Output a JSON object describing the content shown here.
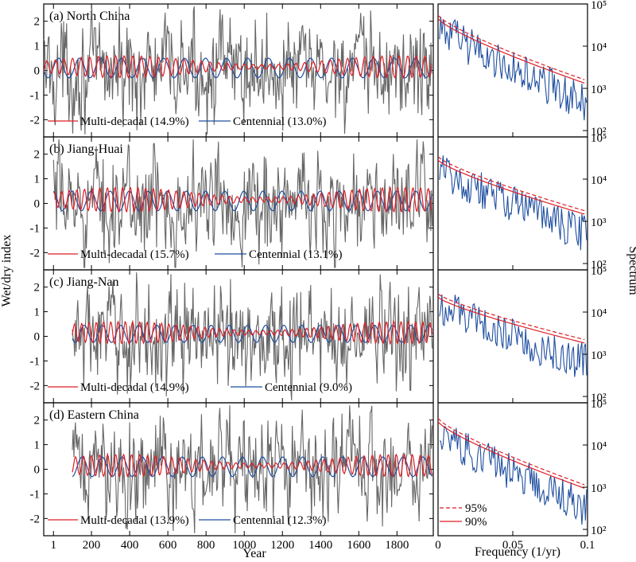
{
  "chart_data": [
    {
      "type": "line",
      "panel": "(a) North China",
      "xlabel": "Year",
      "ylabel": "Wet/dry index",
      "xlim": [
        -50,
        1990
      ],
      "ylim": [
        -2.7,
        2.7
      ],
      "x_ticks": [
        "1",
        "200",
        "400",
        "600",
        "800",
        "1000",
        "1200",
        "1400",
        "1600",
        "1800"
      ],
      "y_ticks": [
        "2",
        "1",
        "0",
        "-1",
        "-2"
      ],
      "start_year": -50,
      "series": [
        {
          "name": "Multi-decadal (14.9%)",
          "color": "#dd1f26",
          "amplitude": 0.45,
          "period_years": 45
        },
        {
          "name": "Centennial (13.0%)",
          "color": "#1f4fa0",
          "amplitude": 0.4,
          "period_years": 110
        },
        {
          "name": "",
          "color": "#666666",
          "amplitude": 1.0,
          "period_years": 0
        }
      ],
      "spectrum": {
        "xlabel": "Frequency (1/yr)",
        "ylabel": "Spectrum",
        "xlim": [
          0,
          0.1
        ],
        "ylim_log10": [
          1.85,
          5.0
        ],
        "x_ticks": [
          "0",
          "0.05",
          "0.1"
        ],
        "y_ticks": [
          "10^5",
          "10^4",
          "10^3",
          "10^2"
        ],
        "red_noise_log10_start": 4.65,
        "red_noise_log10_end": 3.1,
        "significance": [
          {
            "name": "95%",
            "color": "#dd1f26",
            "style": "dashed",
            "offset_log10": 0.08
          },
          {
            "name": "90%",
            "color": "#dd1f26",
            "style": "solid",
            "offset_log10": 0.0
          }
        ],
        "spectrum_color": "#1f4fa0"
      }
    },
    {
      "type": "line",
      "panel": "(b) Jiang-Huai",
      "xlim": [
        -50,
        1990
      ],
      "ylim": [
        -2.7,
        2.7
      ],
      "start_year": 1,
      "series": [
        {
          "name": "Multi-decadal (15.7%)",
          "color": "#dd1f26",
          "amplitude": 0.5,
          "period_years": 40
        },
        {
          "name": "Centennial (13.1%)",
          "color": "#1f4fa0",
          "amplitude": 0.4,
          "period_years": 100
        },
        {
          "name": "",
          "color": "#666666",
          "amplitude": 1.0,
          "period_years": 0
        }
      ],
      "spectrum": {
        "xlim": [
          0,
          0.1
        ],
        "ylim_log10": [
          1.85,
          5.0
        ],
        "red_noise_log10_start": 4.45,
        "red_noise_log10_end": 3.15
      }
    },
    {
      "type": "line",
      "panel": "(c) Jiang-Nan",
      "xlim": [
        -50,
        1990
      ],
      "ylim": [
        -2.7,
        2.7
      ],
      "start_year": 100,
      "series": [
        {
          "name": "Multi-decadal (14.9%)",
          "color": "#dd1f26",
          "amplitude": 0.45,
          "period_years": 38
        },
        {
          "name": "Centennial (9.0%)",
          "color": "#1f4fa0",
          "amplitude": 0.35,
          "period_years": 95
        },
        {
          "name": "",
          "color": "#666666",
          "amplitude": 1.0,
          "period_years": 0
        }
      ],
      "spectrum": {
        "xlim": [
          0,
          0.1
        ],
        "ylim_log10": [
          1.85,
          5.0
        ],
        "red_noise_log10_start": 4.35,
        "red_noise_log10_end": 3.25
      }
    },
    {
      "type": "line",
      "panel": "(d) Eastern China",
      "xlim": [
        -50,
        1990
      ],
      "ylim": [
        -2.7,
        2.7
      ],
      "start_year": 100,
      "series": [
        {
          "name": "Multi-decadal  (13.9%)",
          "color": "#dd1f26",
          "amplitude": 0.45,
          "period_years": 42
        },
        {
          "name": "Centennial (12.3%)",
          "color": "#1f4fa0",
          "amplitude": 0.4,
          "period_years": 105
        },
        {
          "name": "",
          "color": "#666666",
          "amplitude": 1.0,
          "period_years": 0
        }
      ],
      "spectrum": {
        "xlim": [
          0,
          0.1
        ],
        "ylim_log10": [
          1.85,
          5.0
        ],
        "red_noise_log10_start": 4.55,
        "red_noise_log10_end": 2.95,
        "legend": [
          "95%",
          "90%"
        ]
      }
    }
  ],
  "labels": {
    "year_axis": "Year",
    "wet_dry_axis": "Wet/dry index",
    "frequency_axis": "Frequency (1/yr)",
    "spectrum_axis": "Spectrum",
    "legend_95": "95%",
    "legend_90": "90%"
  },
  "colors": {
    "multi_decadal": "#dd1f26",
    "centennial": "#1f4fa0",
    "raw": "#666666",
    "spectrum": "#1f4fa0",
    "significance": "#dd1f26"
  }
}
